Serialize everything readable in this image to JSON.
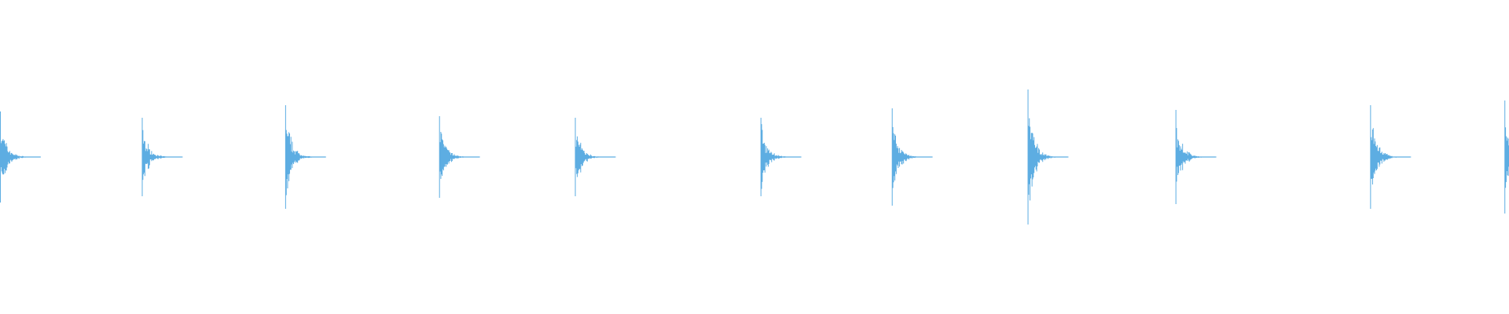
{
  "chart_data": {
    "type": "waveform",
    "color": "#5dade2",
    "x": [
      0,
      0.094,
      0.189,
      0.291,
      0.381,
      0.504,
      0.591,
      0.681,
      0.779,
      0.908,
      0.997
    ],
    "values": [
      0.29,
      0.25,
      0.33,
      0.26,
      0.25,
      0.25,
      0.31,
      0.43,
      0.3,
      0.33,
      0.36
    ],
    "xlim": [
      0,
      1
    ],
    "ylim": [
      -1,
      1
    ]
  }
}
